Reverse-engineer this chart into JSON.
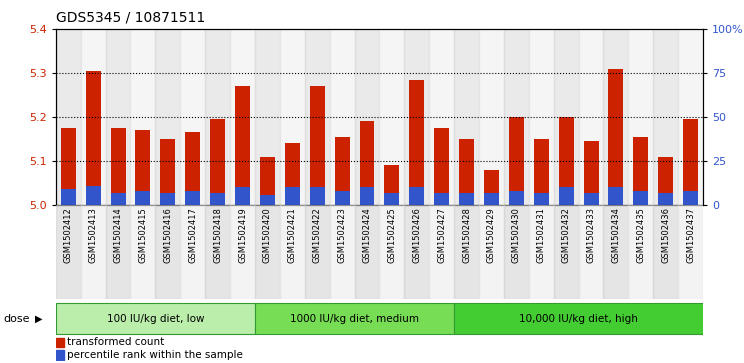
{
  "title": "GDS5345 / 10871511",
  "samples": [
    "GSM1502412",
    "GSM1502413",
    "GSM1502414",
    "GSM1502415",
    "GSM1502416",
    "GSM1502417",
    "GSM1502418",
    "GSM1502419",
    "GSM1502420",
    "GSM1502421",
    "GSM1502422",
    "GSM1502423",
    "GSM1502424",
    "GSM1502425",
    "GSM1502426",
    "GSM1502427",
    "GSM1502428",
    "GSM1502429",
    "GSM1502430",
    "GSM1502431",
    "GSM1502432",
    "GSM1502433",
    "GSM1502434",
    "GSM1502435",
    "GSM1502436",
    "GSM1502437"
  ],
  "red_values": [
    5.175,
    5.305,
    5.175,
    5.17,
    5.15,
    5.165,
    5.195,
    5.27,
    5.11,
    5.14,
    5.27,
    5.155,
    5.19,
    5.09,
    5.285,
    5.175,
    5.15,
    5.08,
    5.2,
    5.15,
    5.2,
    5.145,
    5.31,
    5.155,
    5.11,
    5.195
  ],
  "blue_pct": [
    9,
    11,
    7,
    8,
    7,
    8,
    7,
    10,
    6,
    10,
    10,
    8,
    10,
    7,
    10,
    7,
    7,
    7,
    8,
    7,
    10,
    7,
    10,
    8,
    7,
    8
  ],
  "base": 5.0,
  "ylim_left": [
    5.0,
    5.4
  ],
  "ylim_right": [
    0,
    100
  ],
  "yticks_left": [
    5.0,
    5.1,
    5.2,
    5.3,
    5.4
  ],
  "yticks_right": [
    0,
    25,
    50,
    75,
    100
  ],
  "ytick_labels_right": [
    "0",
    "25",
    "50",
    "75",
    "100%"
  ],
  "groups": [
    {
      "label": "100 IU/kg diet, low",
      "start": 0,
      "end": 8
    },
    {
      "label": "1000 IU/kg diet, medium",
      "start": 8,
      "end": 16
    },
    {
      "label": "10,000 IU/kg diet, high",
      "start": 16,
      "end": 26
    }
  ],
  "dose_label": "dose",
  "legend_red": "transformed count",
  "legend_blue": "percentile rank within the sample",
  "bar_color_red": "#cc2200",
  "bar_color_blue": "#3355cc",
  "group_colors": [
    "#bbeeaa",
    "#77dd55",
    "#44cc33"
  ],
  "grid_color": "black",
  "plot_bg": "#ffffff",
  "label_bg": "#dddddd",
  "title_fontsize": 10,
  "tick_fontsize": 7,
  "axis_color_left": "#cc2200",
  "axis_color_right": "#3355cc"
}
